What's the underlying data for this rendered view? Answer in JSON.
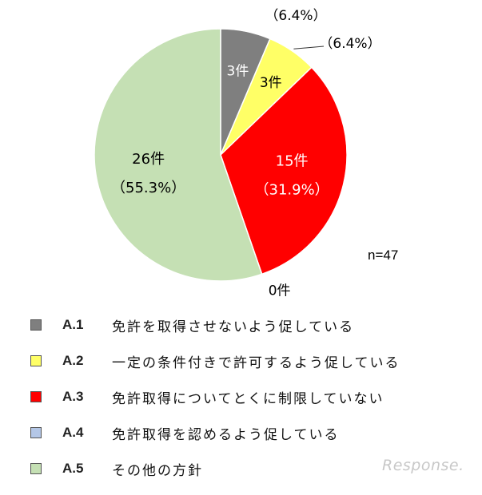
{
  "chart_data": {
    "type": "pie",
    "n_label": "n=47",
    "colors": [
      "#7f7f7f",
      "#ffff66",
      "#ff0000",
      "#b4c7e7",
      "#c5e0b4"
    ],
    "slices": [
      {
        "code": "A.1",
        "label": "免許を取得させないよう促している",
        "count": 3,
        "count_label": "3件",
        "pct_label": "（6.4%）",
        "value": 6.4
      },
      {
        "code": "A.2",
        "label": "一定の条件付きで許可するよう促している",
        "count": 3,
        "count_label": "3件",
        "pct_label": "（6.4%）",
        "value": 6.4
      },
      {
        "code": "A.3",
        "label": "免許取得についてとくに制限していない",
        "count": 15,
        "count_label": "15件",
        "pct_label": "（31.9%）",
        "value": 31.9
      },
      {
        "code": "A.4",
        "label": "免許取得を認めるよう促している",
        "count": 0,
        "count_label": "0件",
        "pct_label": "",
        "value": 0
      },
      {
        "code": "A.5",
        "label": "その他の方針",
        "count": 26,
        "count_label": "26件",
        "pct_label": "（55.3%）",
        "value": 55.3
      }
    ]
  },
  "watermark": "Response."
}
